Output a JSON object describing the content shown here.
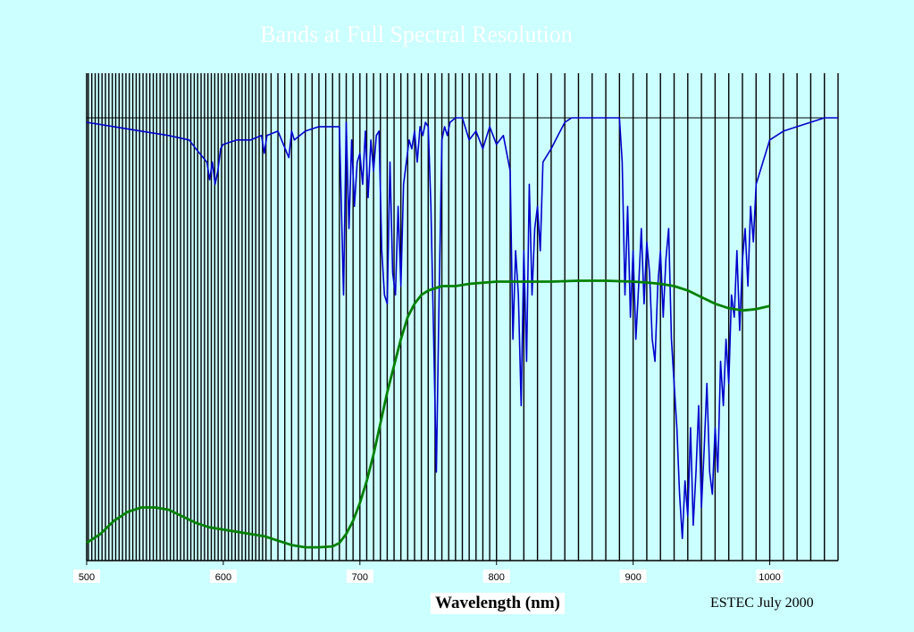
{
  "chart_data": {
    "type": "line",
    "title": "Bands at Full Spectral Resolution",
    "xlabel": "Wavelength (nm)",
    "ylabel": "",
    "xlim": [
      500,
      1050
    ],
    "ylim": [
      0,
      1
    ],
    "x_ticks": [
      500,
      600,
      700,
      800,
      900,
      1000
    ],
    "grid": "vertical lines marking spectral band edges",
    "band_edges_nm": [
      501.25,
      503.75,
      506.25,
      508.75,
      511.25,
      513.75,
      516.25,
      518.75,
      521.25,
      523.75,
      526.25,
      528.75,
      531.25,
      533.75,
      536.25,
      538.75,
      541.25,
      543.75,
      546.25,
      548.75,
      551.25,
      553.75,
      556.25,
      558.75,
      561.25,
      563.75,
      566.25,
      568.75,
      571.25,
      573.75,
      576.25,
      578.75,
      581.25,
      583.75,
      586.25,
      588.75,
      591.25,
      593.75,
      596.25,
      598.75,
      601.25,
      603.75,
      606.25,
      608.75,
      611.25,
      613.75,
      616.25,
      618.75,
      621.25,
      623.75,
      626.25,
      628.75,
      631.25,
      635,
      640,
      645,
      650,
      655,
      660,
      665,
      670,
      675,
      680,
      685,
      690,
      695,
      700,
      705,
      710,
      715,
      720,
      725,
      730,
      735,
      740,
      745,
      750,
      755,
      760,
      765,
      770,
      775,
      780,
      785,
      790,
      795,
      800,
      810,
      820,
      830,
      840,
      850,
      860,
      870,
      880,
      890,
      900,
      910,
      920,
      930,
      940,
      950,
      960,
      970,
      980,
      990,
      1000,
      1010,
      1020,
      1030,
      1040,
      1050
    ],
    "series": [
      {
        "color": "#0000cc",
        "x": [
          500,
          520,
          540,
          560,
          575,
          580,
          588,
          590,
          592,
          594,
          596,
          598,
          600,
          610,
          620,
          628,
          630,
          632,
          640,
          648,
          650,
          652,
          660,
          670,
          680,
          685,
          688,
          690,
          692,
          694,
          696,
          698,
          700,
          702,
          704,
          706,
          708,
          710,
          712,
          714,
          716,
          718,
          720,
          722,
          724,
          726,
          728,
          730,
          732,
          734,
          736,
          738,
          740,
          742,
          744,
          746,
          748,
          750,
          752,
          754,
          756,
          758,
          760,
          762,
          764,
          766,
          770,
          775,
          780,
          785,
          790,
          795,
          800,
          805,
          810,
          812,
          814,
          816,
          818,
          820,
          822,
          824,
          826,
          828,
          830,
          832,
          834,
          840,
          845,
          850,
          855,
          860,
          870,
          880,
          890,
          892,
          894,
          896,
          898,
          900,
          902,
          904,
          906,
          908,
          910,
          912,
          914,
          916,
          918,
          920,
          922,
          924,
          926,
          928,
          930,
          932,
          934,
          936,
          938,
          940,
          942,
          944,
          946,
          948,
          950,
          952,
          954,
          956,
          958,
          960,
          962,
          964,
          966,
          968,
          970,
          972,
          974,
          976,
          978,
          980,
          982,
          984,
          986,
          988,
          990,
          995,
          1000,
          1010,
          1020,
          1030,
          1040,
          1050
        ],
        "y": [
          0.99,
          0.98,
          0.97,
          0.96,
          0.95,
          0.93,
          0.9,
          0.86,
          0.9,
          0.85,
          0.88,
          0.93,
          0.94,
          0.95,
          0.95,
          0.96,
          0.92,
          0.96,
          0.97,
          0.91,
          0.97,
          0.95,
          0.97,
          0.98,
          0.98,
          0.98,
          0.6,
          0.99,
          0.75,
          0.95,
          0.8,
          0.9,
          0.92,
          0.85,
          0.97,
          0.82,
          0.95,
          0.88,
          0.96,
          0.97,
          0.7,
          0.6,
          0.58,
          0.9,
          0.65,
          0.6,
          0.8,
          0.62,
          0.85,
          0.9,
          0.95,
          0.93,
          0.97,
          0.9,
          0.98,
          0.96,
          0.99,
          0.98,
          0.8,
          0.5,
          0.2,
          0.6,
          0.95,
          0.98,
          0.96,
          0.99,
          1.0,
          1.0,
          0.95,
          0.97,
          0.93,
          0.98,
          0.94,
          0.96,
          0.88,
          0.5,
          0.7,
          0.6,
          0.35,
          0.7,
          0.45,
          0.85,
          0.6,
          0.75,
          0.8,
          0.7,
          0.9,
          0.93,
          0.96,
          0.99,
          1.0,
          1.0,
          1.0,
          1.0,
          1.0,
          0.9,
          0.6,
          0.8,
          0.55,
          0.7,
          0.5,
          0.62,
          0.75,
          0.58,
          0.72,
          0.65,
          0.5,
          0.45,
          0.62,
          0.7,
          0.55,
          0.68,
          0.75,
          0.5,
          0.4,
          0.3,
          0.15,
          0.05,
          0.18,
          0.1,
          0.3,
          0.08,
          0.2,
          0.35,
          0.12,
          0.25,
          0.4,
          0.2,
          0.15,
          0.3,
          0.2,
          0.45,
          0.35,
          0.5,
          0.4,
          0.6,
          0.55,
          0.7,
          0.52,
          0.68,
          0.75,
          0.62,
          0.8,
          0.72,
          0.85,
          0.9,
          0.95,
          0.97,
          0.98,
          0.99,
          1.0,
          1.0
        ]
      },
      {
        "color": "#008000",
        "x": [
          500,
          510,
          520,
          530,
          540,
          550,
          560,
          570,
          580,
          590,
          600,
          610,
          620,
          630,
          640,
          650,
          660,
          670,
          680,
          685,
          690,
          695,
          700,
          705,
          710,
          715,
          720,
          725,
          730,
          735,
          740,
          745,
          750,
          755,
          760,
          770,
          780,
          800,
          820,
          840,
          860,
          880,
          900,
          910,
          920,
          930,
          940,
          950,
          960,
          970,
          980,
          990,
          1000
        ],
        "y": [
          0.04,
          0.06,
          0.09,
          0.11,
          0.12,
          0.12,
          0.115,
          0.1,
          0.085,
          0.075,
          0.07,
          0.065,
          0.06,
          0.055,
          0.045,
          0.035,
          0.03,
          0.03,
          0.032,
          0.04,
          0.06,
          0.09,
          0.13,
          0.18,
          0.24,
          0.31,
          0.38,
          0.44,
          0.5,
          0.55,
          0.58,
          0.6,
          0.61,
          0.615,
          0.62,
          0.62,
          0.625,
          0.63,
          0.63,
          0.63,
          0.632,
          0.632,
          0.63,
          0.628,
          0.625,
          0.62,
          0.61,
          0.595,
          0.58,
          0.57,
          0.565,
          0.568,
          0.575
        ]
      }
    ],
    "footer": "ESTEC July 2000"
  }
}
